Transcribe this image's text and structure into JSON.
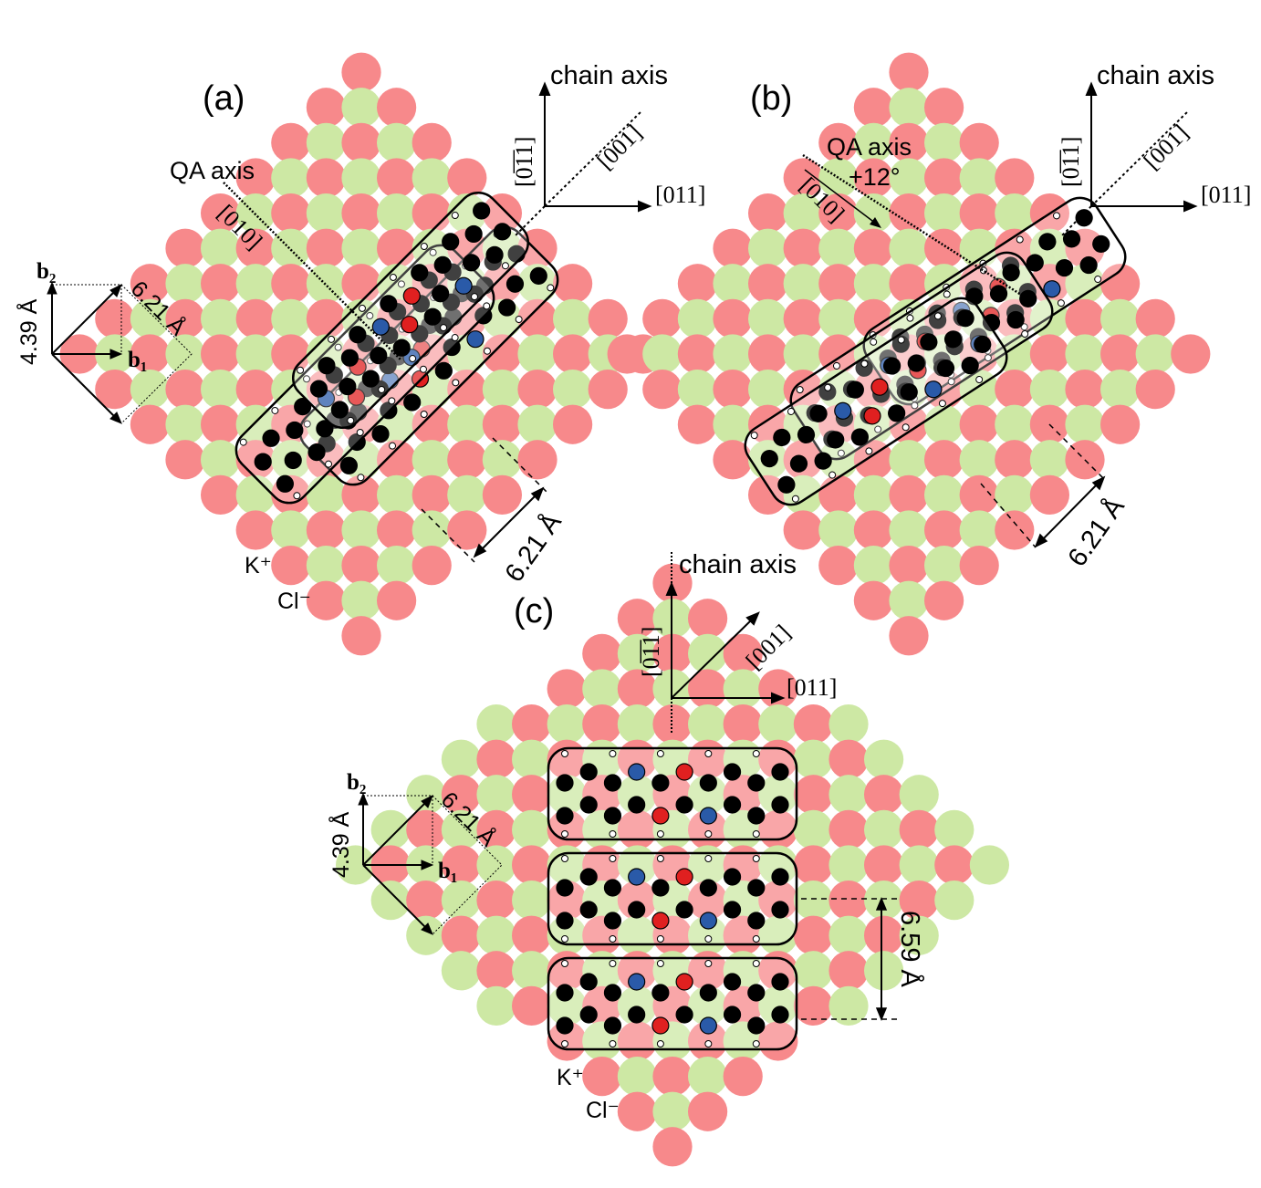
{
  "panels": [
    {
      "label": "(a)",
      "chain_axis": "chain axis",
      "dir_up": "[0̅1̅1]",
      "dir_right": "[011]",
      "dir_diag": "[001]",
      "qa_axis": "QA axis",
      "qa_dir": "[010]",
      "dist_1": "6.21 Å",
      "dist_2": "4.39 Å",
      "spacing": "6.21 Å",
      "b1": "b₁",
      "b2": "b₂",
      "ion_k": "K⁺",
      "ion_cl": "Cl⁻"
    },
    {
      "label": "(b)",
      "chain_axis": "chain axis",
      "dir_up": "[0̅1̅1]",
      "dir_right": "[011]",
      "dir_diag": "[001]",
      "qa_axis": "QA axis",
      "qa_angle": "+12°",
      "qa_dir": "[010]",
      "spacing": "6.21 Å"
    },
    {
      "label": "(c)",
      "chain_axis": "chain axis",
      "dir_up": "[0̅1̅1]",
      "dir_right": "[011]",
      "dir_diag": "[001]",
      "dist_1": "6.21 Å",
      "dist_2": "4.39 Å",
      "spacing": "6.59 Å",
      "b1": "b₁",
      "b2": "b₂",
      "ion_k": "K⁺",
      "ion_cl": "Cl⁻"
    }
  ],
  "colors": {
    "k_ion": "#f7898b",
    "cl_ion": "#cde8a4",
    "carbon": "#000000",
    "oxygen": "#e02020",
    "nitrogen": "#2a5aa8",
    "hydrogen": "#ffffff"
  }
}
